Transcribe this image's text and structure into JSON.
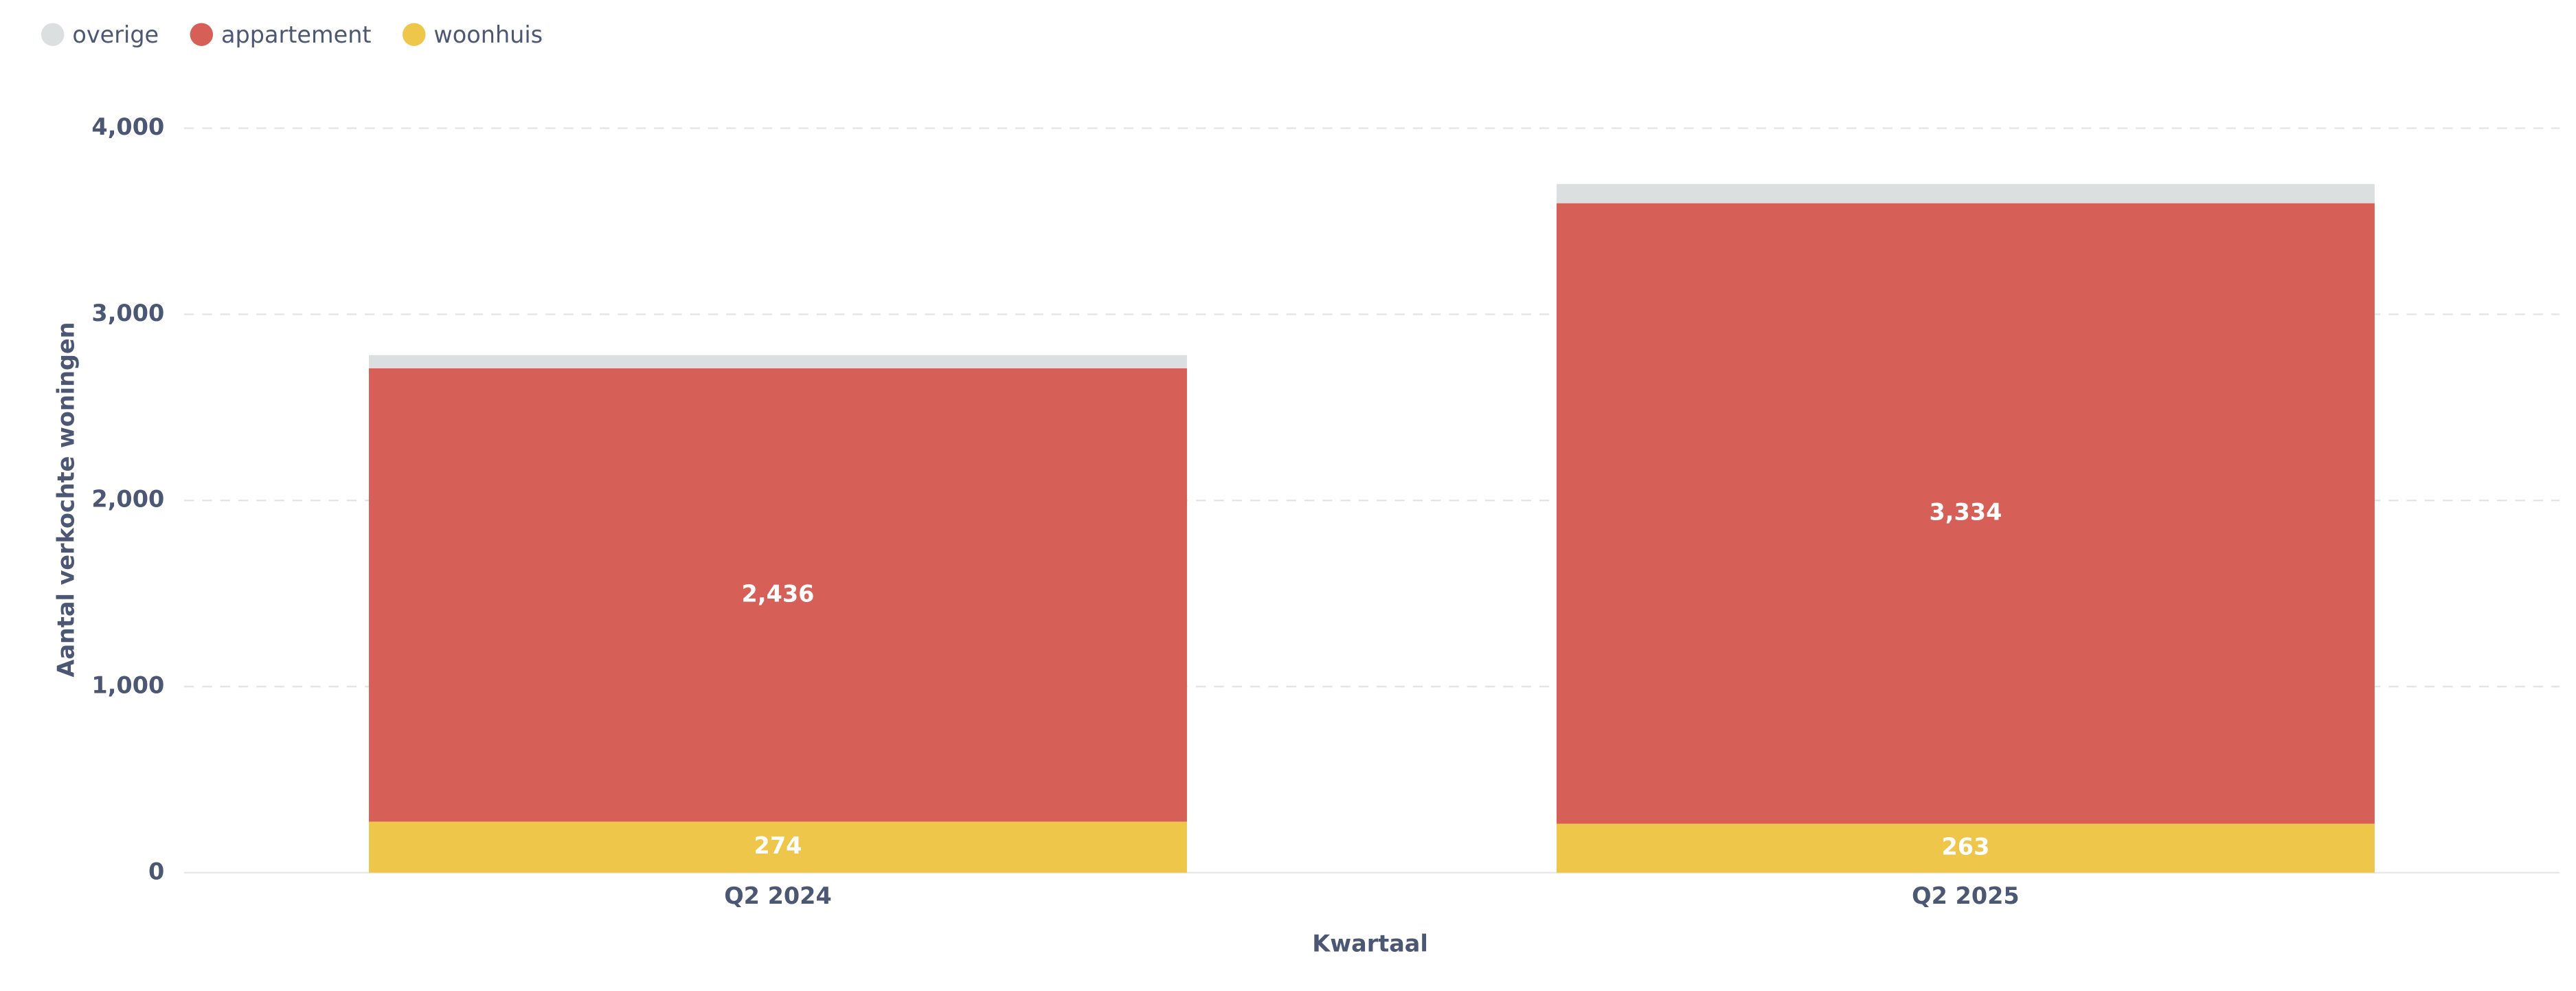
{
  "chart_data": {
    "type": "stacked-bar",
    "x_label": "Kwartaal",
    "y_label": "Aantal verkochte woningen",
    "categories": [
      "Q2 2024",
      "Q2 2025"
    ],
    "series": [
      {
        "name": "woonhuis",
        "color": "#edc64a",
        "values": [
          274,
          263
        ],
        "value_labels": [
          "274",
          "263"
        ]
      },
      {
        "name": "appartement",
        "color": "#d66058",
        "values": [
          2436,
          3334
        ],
        "value_labels": [
          "2,436",
          "3,334"
        ]
      },
      {
        "name": "overige",
        "color": "#dcdfe0",
        "values": [
          71,
          103
        ]
      }
    ],
    "legend_order": [
      "overige",
      "appartement",
      "woonhuis"
    ],
    "ylim": [
      0,
      4000
    ],
    "yticks": [
      0,
      {
        "value": 1000,
        "label": "1,000"
      },
      {
        "value": 2000,
        "label": "2,000"
      },
      {
        "value": 3000,
        "label": "3,000"
      },
      {
        "value": 4000,
        "label": "4,000"
      }
    ],
    "grid": true
  }
}
